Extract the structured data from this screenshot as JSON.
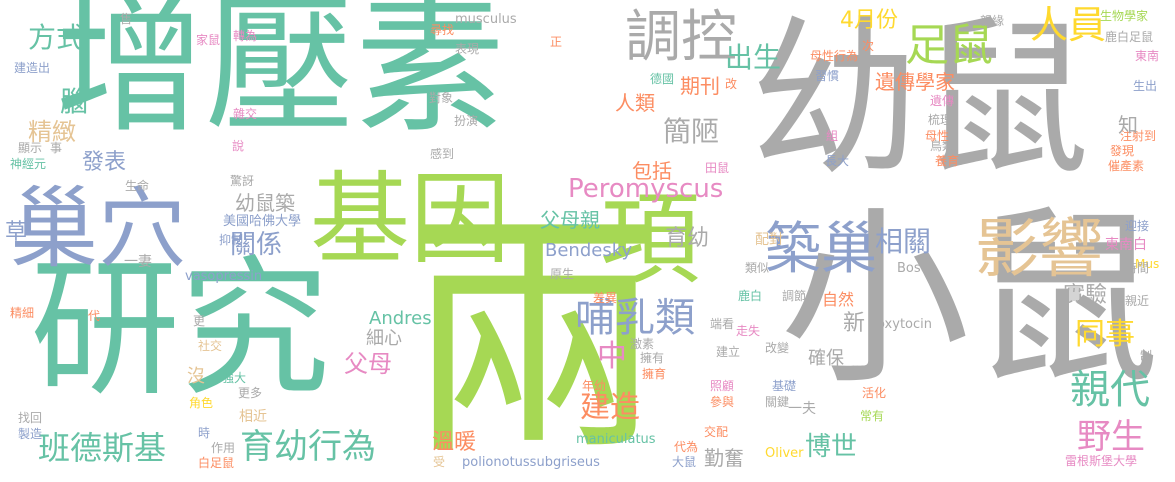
{
  "palette": {
    "grey": "#aaaaaa",
    "teal": "#66c2a5",
    "green": "#a6d854",
    "blue": "#8da0cb",
    "orange": "#fc8d62",
    "pink": "#e78ac3",
    "yellow": "#ffd92f",
    "tan": "#e5c494"
  },
  "words": [
    {
      "text": "增壓素",
      "color": "#66c2a5"
    },
    {
      "text": "幼鼠",
      "color": "#aaaaaa"
    },
    {
      "text": "研究",
      "color": "#66c2a5"
    },
    {
      "text": "兩",
      "color": "#a6d854"
    },
    {
      "text": "小鼠",
      "color": "#aaaaaa"
    },
    {
      "text": "基因",
      "color": "#a6d854"
    },
    {
      "text": "巢穴",
      "color": "#8da0cb"
    },
    {
      "text": "項",
      "color": "#a6d854"
    },
    {
      "text": "築巢",
      "color": "#8da0cb"
    },
    {
      "text": "影響",
      "color": "#e5c494"
    },
    {
      "text": "調控",
      "color": "#aaaaaa"
    },
    {
      "text": "足鼠",
      "color": "#a6d854"
    },
    {
      "text": "人員",
      "color": "#ffd92f"
    },
    {
      "text": "出生",
      "color": "#66c2a5"
    },
    {
      "text": "4月份",
      "color": "#ffd92f"
    },
    {
      "text": "方式",
      "color": "#66c2a5"
    },
    {
      "text": "腦",
      "color": "#66c2a5"
    },
    {
      "text": "精緻",
      "color": "#e5c494"
    },
    {
      "text": "發表",
      "color": "#8da0cb"
    },
    {
      "text": "草",
      "color": "#8da0cb"
    },
    {
      "text": "班德斯基",
      "color": "#66c2a5"
    },
    {
      "text": "育幼行為",
      "color": "#66c2a5"
    },
    {
      "text": "Peromyscus",
      "color": "#e78ac3"
    },
    {
      "text": "哺乳類",
      "color": "#8da0cb"
    },
    {
      "text": "相關",
      "color": "#8da0cb"
    },
    {
      "text": "關係",
      "color": "#8da0cb"
    },
    {
      "text": "親代",
      "color": "#66c2a5"
    },
    {
      "text": "同事",
      "color": "#ffd92f"
    },
    {
      "text": "野生",
      "color": "#e78ac3"
    },
    {
      "text": "建造",
      "color": "#fc8d62"
    },
    {
      "text": "博世",
      "color": "#66c2a5"
    },
    {
      "text": "中",
      "color": "#e78ac3"
    },
    {
      "text": "簡陋",
      "color": "#aaaaaa"
    },
    {
      "text": "期刊",
      "color": "#fc8d62"
    },
    {
      "text": "人類",
      "color": "#fc8d62"
    },
    {
      "text": "遺傳學家",
      "color": "#fc8d62"
    },
    {
      "text": "實驗",
      "color": "#aaaaaa"
    },
    {
      "text": "育幼",
      "color": "#aaaaaa"
    },
    {
      "text": "父母親",
      "color": "#66c2a5"
    },
    {
      "text": "包括",
      "color": "#fc8d62"
    },
    {
      "text": "父母",
      "color": "#e78ac3"
    },
    {
      "text": "溫暖",
      "color": "#fc8d62"
    },
    {
      "text": "勤奮",
      "color": "#aaaaaa"
    },
    {
      "text": "細心",
      "color": "#aaaaaa"
    },
    {
      "text": "幼鼠築",
      "color": "#aaaaaa"
    },
    {
      "text": "Bendesky",
      "color": "#8da0cb"
    },
    {
      "text": "Andres",
      "color": "#66c2a5"
    },
    {
      "text": "vasopressin",
      "color": "#8da0cb"
    },
    {
      "text": "maniculatus",
      "color": "#66c2a5"
    },
    {
      "text": "polionotussubgriseus",
      "color": "#8da0cb"
    },
    {
      "text": "musculus",
      "color": "#aaaaaa"
    },
    {
      "text": "oxytocin",
      "color": "#aaaaaa"
    },
    {
      "text": "Oliver",
      "color": "#ffd92f"
    },
    {
      "text": "Bosch",
      "color": "#aaaaaa"
    },
    {
      "text": "Mus",
      "color": "#ffd92f"
    },
    {
      "text": "美國哈佛大學",
      "color": "#8da0cb"
    },
    {
      "text": "雷根斯堡大學",
      "color": "#e78ac3"
    },
    {
      "text": "生物學家",
      "color": "#a6d854"
    },
    {
      "text": "東南白",
      "color": "#e78ac3"
    },
    {
      "text": "東南",
      "color": "#e78ac3"
    },
    {
      "text": "自然",
      "color": "#fc8d62"
    },
    {
      "text": "新",
      "color": "#aaaaaa"
    },
    {
      "text": "確保",
      "color": "#aaaaaa"
    },
    {
      "text": "沒",
      "color": "#e5c494"
    },
    {
      "text": "一夫",
      "color": "#aaaaaa"
    },
    {
      "text": "一妻",
      "color": "#aaaaaa"
    },
    {
      "text": "相近",
      "color": "#e5c494"
    },
    {
      "text": "配對",
      "color": "#e5c494"
    },
    {
      "text": "抑制",
      "color": "#8da0cb"
    },
    {
      "text": "驚訝",
      "color": "#aaaaaa"
    },
    {
      "text": "感到",
      "color": "#aaaaaa"
    },
    {
      "text": "扮演",
      "color": "#aaaaaa"
    },
    {
      "text": "對象",
      "color": "#aaaaaa"
    },
    {
      "text": "表現",
      "color": "#aaaaaa"
    },
    {
      "text": "尋找",
      "color": "#fc8d62"
    },
    {
      "text": "雜交",
      "color": "#e78ac3"
    },
    {
      "text": "正",
      "color": "#fc8d62"
    },
    {
      "text": "德國",
      "color": "#66c2a5"
    },
    {
      "text": "改",
      "color": "#fc8d62"
    },
    {
      "text": "轉為",
      "color": "#e78ac3"
    },
    {
      "text": "售",
      "color": "#aaaaaa"
    },
    {
      "text": "家鼠",
      "color": "#e78ac3"
    },
    {
      "text": "建造出",
      "color": "#8da0cb"
    },
    {
      "text": "說",
      "color": "#e78ac3"
    },
    {
      "text": "顯示",
      "color": "#aaaaaa"
    },
    {
      "text": "事",
      "color": "#aaaaaa"
    },
    {
      "text": "神經元",
      "color": "#66c2a5"
    },
    {
      "text": "生命",
      "color": "#aaaaaa"
    },
    {
      "text": "精細",
      "color": "#fc8d62"
    },
    {
      "text": "代",
      "color": "#fc8d62"
    },
    {
      "text": "更",
      "color": "#aaaaaa"
    },
    {
      "text": "社交",
      "color": "#e5c494"
    },
    {
      "text": "強大",
      "color": "#66c2a5"
    },
    {
      "text": "更多",
      "color": "#aaaaaa"
    },
    {
      "text": "角色",
      "color": "#ffd92f"
    },
    {
      "text": "找回",
      "color": "#aaaaaa"
    },
    {
      "text": "製造",
      "color": "#8da0cb"
    },
    {
      "text": "時",
      "color": "#8da0cb"
    },
    {
      "text": "作用",
      "color": "#aaaaaa"
    },
    {
      "text": "白足鼠",
      "color": "#fc8d62"
    },
    {
      "text": "受",
      "color": "#e5c494"
    },
    {
      "text": "原生",
      "color": "#aaaaaa"
    },
    {
      "text": "差異",
      "color": "#fc8d62"
    },
    {
      "text": "鹿白",
      "color": "#66c2a5"
    },
    {
      "text": "年幼",
      "color": "#fc8d62"
    },
    {
      "text": "大鼠",
      "color": "#8da0cb"
    },
    {
      "text": "代為",
      "color": "#fc8d62"
    },
    {
      "text": "交配",
      "color": "#fc8d62"
    },
    {
      "text": "參與",
      "color": "#fc8d62"
    },
    {
      "text": "關鍵",
      "color": "#aaaaaa"
    },
    {
      "text": "照顧",
      "color": "#e78ac3"
    },
    {
      "text": "基礎",
      "color": "#8da0cb"
    },
    {
      "text": "活化",
      "color": "#fc8d62"
    },
    {
      "text": "常有",
      "color": "#a6d854"
    },
    {
      "text": "改變",
      "color": "#aaaaaa"
    },
    {
      "text": "建立",
      "color": "#aaaaaa"
    },
    {
      "text": "走失",
      "color": "#e78ac3"
    },
    {
      "text": "端看",
      "color": "#aaaaaa"
    },
    {
      "text": "擁有",
      "color": "#aaaaaa"
    },
    {
      "text": "擁育",
      "color": "#fc8d62"
    },
    {
      "text": "激素",
      "color": "#aaaaaa"
    },
    {
      "text": "調節",
      "color": "#aaaaaa"
    },
    {
      "text": "類似",
      "color": "#aaaaaa"
    },
    {
      "text": "鹿白足鼠",
      "color": "#aaaaaa"
    },
    {
      "text": "田鼠",
      "color": "#e78ac3"
    },
    {
      "text": "長大",
      "color": "#8da0cb"
    },
    {
      "text": "鳥類",
      "color": "#aaaaaa"
    },
    {
      "text": "養育",
      "color": "#fc8d62"
    },
    {
      "text": "母性",
      "color": "#fc8d62"
    },
    {
      "text": "梳理",
      "color": "#aaaaaa"
    },
    {
      "text": "習慣",
      "color": "#8da0cb"
    },
    {
      "text": "母性行為",
      "color": "#fc8d62"
    },
    {
      "text": "親緣",
      "color": "#aaaaaa"
    },
    {
      "text": "次",
      "color": "#fc8d62"
    },
    {
      "text": "生出",
      "color": "#8da0cb"
    },
    {
      "text": "遺傳",
      "color": "#e78ac3"
    },
    {
      "text": "組",
      "color": "#e78ac3"
    },
    {
      "text": "注射到",
      "color": "#fc8d62"
    },
    {
      "text": "發現",
      "color": "#fc8d62"
    },
    {
      "text": "催產素",
      "color": "#fc8d62"
    },
    {
      "text": "迎接",
      "color": "#8da0cb"
    },
    {
      "text": "時間",
      "color": "#aaaaaa"
    },
    {
      "text": "親近",
      "color": "#aaaaaa"
    },
    {
      "text": "知",
      "color": "#aaaaaa"
    },
    {
      "text": "制",
      "color": "#aaaaaa"
    }
  ]
}
